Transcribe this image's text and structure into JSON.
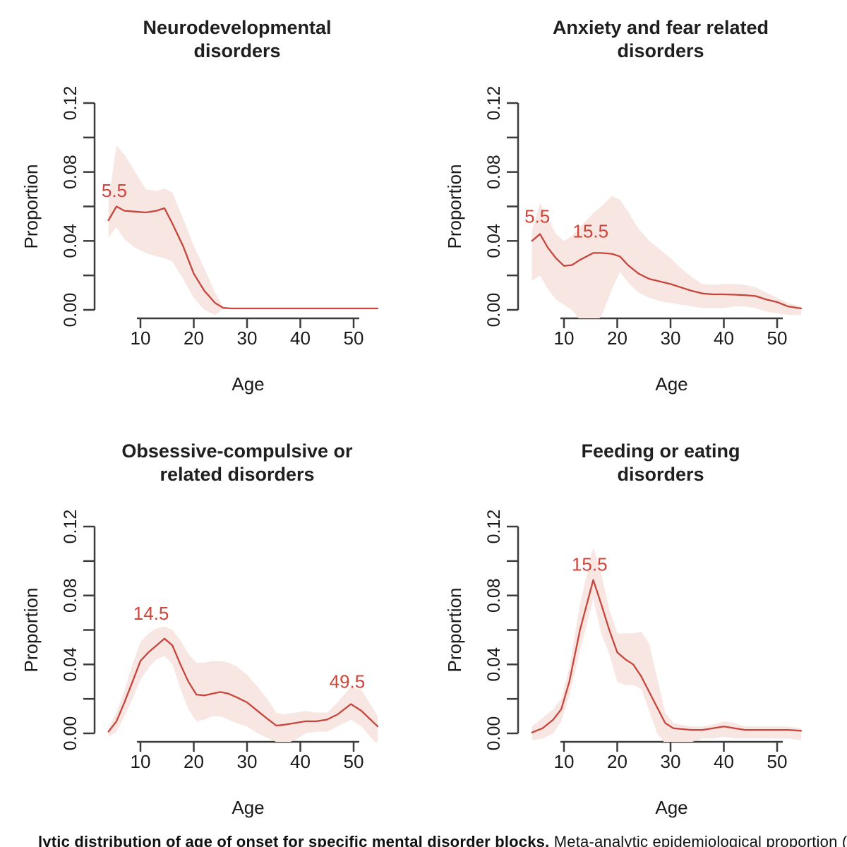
{
  "page": {
    "background": "#ffffff"
  },
  "colors": {
    "line": "#c6463d",
    "band": "#f7e6e2",
    "annotation": "#d0453a",
    "axis": "#3c3c3c",
    "tick_text": "#1a1a1a",
    "title_text": "#1f1f1f"
  },
  "caption": {
    "bold": "lytic distribution of age of onset for specific mental disorder blocks.",
    "regular": " Meta-analytic epidemiological proportion ("
  },
  "chart_data": [
    {
      "type": "line",
      "title": "Neurodevelopmental disorders",
      "title_lines": [
        "Neurodevelopmental",
        "disorders"
      ],
      "xlabel": "Age",
      "ylabel": "Proportion",
      "xlim": [
        3,
        55.5
      ],
      "ylim": [
        0,
        0.12
      ],
      "xticks": [
        10,
        20,
        30,
        40,
        50
      ],
      "yticks": [
        0,
        0.02,
        0.04,
        0.06,
        0.08,
        0.1,
        0.12
      ],
      "ytick_labeled": [
        0,
        0.04,
        0.08,
        0.12
      ],
      "ytick_labels": [
        "0.00",
        "0.04",
        "0.08",
        "0.12"
      ],
      "x": [
        4,
        5.5,
        7,
        9,
        11,
        13,
        14.5,
        16,
        18,
        20,
        22,
        24,
        25.5,
        27,
        30,
        35,
        40,
        45,
        50,
        54.5
      ],
      "series": [
        {
          "name": "mean",
          "values": [
            0.052,
            0.06,
            0.0575,
            0.057,
            0.0565,
            0.0575,
            0.059,
            0.05,
            0.037,
            0.021,
            0.011,
            0.004,
            0.0012,
            0.0008,
            0.0008,
            0.0008,
            0.0008,
            0.0008,
            0.0008,
            0.0008
          ]
        },
        {
          "name": "upper",
          "values": [
            0.063,
            0.0955,
            0.09,
            0.08,
            0.07,
            0.069,
            0.0705,
            0.068,
            0.053,
            0.037,
            0.024,
            0.01,
            0.002,
            0.0012,
            0.0012,
            0.0012,
            0.0012,
            0.0012,
            0.0012,
            0.0012
          ]
        },
        {
          "name": "lower",
          "values": [
            0.042,
            0.048,
            0.041,
            0.036,
            0.033,
            0.031,
            0.03,
            0.028,
            0.018,
            0.007,
            0.0,
            -0.003,
            0.0004,
            0.0004,
            0.0004,
            0.0004,
            0.0004,
            0.0004,
            0.0004,
            0.0004
          ]
        }
      ],
      "annotations": [
        {
          "text": "5.5",
          "age": 2.7,
          "value": 0.0655,
          "anchor": "start"
        }
      ]
    },
    {
      "type": "line",
      "title": "Anxiety and fear related disorders",
      "title_lines": [
        "Anxiety and fear related",
        "disorders"
      ],
      "xlabel": "Age",
      "ylabel": "Proportion",
      "xlim": [
        3,
        55.5
      ],
      "ylim": [
        0,
        0.12
      ],
      "xticks": [
        10,
        20,
        30,
        40,
        50
      ],
      "yticks": [
        0,
        0.02,
        0.04,
        0.06,
        0.08,
        0.1,
        0.12
      ],
      "ytick_labeled": [
        0,
        0.04,
        0.08,
        0.12
      ],
      "ytick_labels": [
        "0.00",
        "0.04",
        "0.08",
        "0.12"
      ],
      "x": [
        4,
        5.5,
        7,
        8.5,
        10,
        11.5,
        13,
        15.5,
        17,
        19,
        20.5,
        22,
        24,
        26,
        28,
        30,
        32,
        34,
        36,
        38,
        40,
        42,
        44,
        46,
        48,
        50,
        52,
        54.5
      ],
      "series": [
        {
          "name": "mean",
          "values": [
            0.04,
            0.044,
            0.036,
            0.03,
            0.0255,
            0.026,
            0.029,
            0.033,
            0.033,
            0.0325,
            0.031,
            0.026,
            0.021,
            0.018,
            0.0165,
            0.015,
            0.013,
            0.011,
            0.0095,
            0.009,
            0.009,
            0.0088,
            0.0085,
            0.008,
            0.006,
            0.0045,
            0.002,
            0.0008
          ]
        },
        {
          "name": "upper",
          "values": [
            0.046,
            0.062,
            0.053,
            0.044,
            0.04,
            0.043,
            0.048,
            0.056,
            0.06,
            0.066,
            0.064,
            0.057,
            0.047,
            0.04,
            0.035,
            0.03,
            0.024,
            0.019,
            0.015,
            0.0145,
            0.015,
            0.015,
            0.0145,
            0.013,
            0.01,
            0.007,
            0.004,
            0.002
          ]
        },
        {
          "name": "lower",
          "values": [
            0.017,
            0.02,
            0.012,
            0.006,
            0.003,
            0.0,
            -0.006,
            -0.008,
            -0.004,
            0.012,
            0.022,
            0.016,
            0.01,
            0.007,
            0.005,
            0.004,
            0.003,
            0.002,
            0.001,
            0.001,
            0.001,
            0.002,
            0.002,
            0.001,
            -0.001,
            -0.002,
            -0.003,
            -0.003
          ]
        }
      ],
      "annotations": [
        {
          "text": "5.5",
          "age": 2.6,
          "value": 0.0505,
          "anchor": "start"
        },
        {
          "text": "15.5",
          "age": 15.0,
          "value": 0.042,
          "anchor": "middle"
        }
      ]
    },
    {
      "type": "line",
      "title": "Obsessive-compulsive or related disorders",
      "title_lines": [
        "Obsessive-compulsive or",
        "related disorders"
      ],
      "xlabel": "Age",
      "ylabel": "Proportion",
      "xlim": [
        3,
        55.5
      ],
      "ylim": [
        0,
        0.12
      ],
      "xticks": [
        10,
        20,
        30,
        40,
        50
      ],
      "yticks": [
        0,
        0.02,
        0.04,
        0.06,
        0.08,
        0.1,
        0.12
      ],
      "ytick_labeled": [
        0,
        0.04,
        0.08,
        0.12
      ],
      "ytick_labels": [
        "0.00",
        "0.04",
        "0.08",
        "0.12"
      ],
      "x": [
        4,
        5.5,
        7,
        8.5,
        10,
        11.5,
        13,
        14.5,
        16,
        17.5,
        19,
        20.5,
        22,
        23.5,
        25,
        26.5,
        28,
        30,
        32,
        34,
        35.5,
        37,
        39,
        41,
        43,
        45,
        47,
        49.5,
        51.5,
        54.5
      ],
      "series": [
        {
          "name": "mean",
          "values": [
            0.001,
            0.007,
            0.018,
            0.03,
            0.042,
            0.047,
            0.051,
            0.055,
            0.051,
            0.04,
            0.03,
            0.0225,
            0.022,
            0.023,
            0.024,
            0.023,
            0.021,
            0.018,
            0.013,
            0.008,
            0.0045,
            0.005,
            0.006,
            0.007,
            0.007,
            0.008,
            0.011,
            0.017,
            0.013,
            0.004
          ]
        },
        {
          "name": "upper",
          "values": [
            0.003,
            0.012,
            0.025,
            0.04,
            0.053,
            0.058,
            0.061,
            0.062,
            0.06,
            0.054,
            0.046,
            0.041,
            0.041,
            0.042,
            0.042,
            0.041,
            0.039,
            0.034,
            0.027,
            0.019,
            0.012,
            0.011,
            0.012,
            0.013,
            0.012,
            0.012,
            0.018,
            0.027,
            0.025,
            0.01
          ]
        },
        {
          "name": "lower",
          "values": [
            -0.002,
            0.001,
            0.01,
            0.02,
            0.031,
            0.038,
            0.043,
            0.045,
            0.04,
            0.026,
            0.014,
            0.007,
            0.008,
            0.01,
            0.01,
            0.008,
            0.006,
            0.004,
            0.0,
            -0.003,
            -0.005,
            -0.006,
            -0.004,
            0.0,
            0.001,
            0.001,
            0.004,
            0.008,
            0.004,
            -0.007
          ]
        }
      ],
      "annotations": [
        {
          "text": "14.5",
          "age": 12.0,
          "value": 0.066,
          "anchor": "middle"
        },
        {
          "text": "49.5",
          "age": 48.8,
          "value": 0.0265,
          "anchor": "middle"
        }
      ]
    },
    {
      "type": "line",
      "title": "Feeding or eating disorders",
      "title_lines": [
        "Feeding or eating",
        "disorders"
      ],
      "xlabel": "Age",
      "ylabel": "Proportion",
      "xlim": [
        3,
        55.5
      ],
      "ylim": [
        0,
        0.12
      ],
      "xticks": [
        10,
        20,
        30,
        40,
        50
      ],
      "yticks": [
        0,
        0.02,
        0.04,
        0.06,
        0.08,
        0.1,
        0.12
      ],
      "ytick_labeled": [
        0,
        0.04,
        0.08,
        0.12
      ],
      "ytick_labels": [
        "0.00",
        "0.04",
        "0.08",
        "0.12"
      ],
      "x": [
        4,
        6,
        8,
        9.5,
        11,
        13,
        15.5,
        17,
        18.5,
        20,
        21.5,
        23,
        24.5,
        26,
        27.5,
        29,
        30.5,
        32,
        34,
        36,
        38,
        40,
        42,
        44,
        46,
        48,
        50,
        52,
        54.5
      ],
      "series": [
        {
          "name": "mean",
          "values": [
            0.0005,
            0.003,
            0.008,
            0.014,
            0.03,
            0.06,
            0.089,
            0.075,
            0.06,
            0.047,
            0.043,
            0.04,
            0.033,
            0.024,
            0.015,
            0.006,
            0.003,
            0.0025,
            0.002,
            0.002,
            0.003,
            0.004,
            0.003,
            0.002,
            0.002,
            0.002,
            0.002,
            0.002,
            0.0015
          ]
        },
        {
          "name": "upper",
          "values": [
            0.004,
            0.009,
            0.014,
            0.02,
            0.038,
            0.075,
            0.108,
            0.093,
            0.072,
            0.058,
            0.058,
            0.058,
            0.059,
            0.052,
            0.032,
            0.012,
            0.006,
            0.005,
            0.004,
            0.004,
            0.005,
            0.007,
            0.006,
            0.004,
            0.004,
            0.004,
            0.004,
            0.004,
            0.003
          ]
        },
        {
          "name": "lower",
          "values": [
            -0.004,
            -0.003,
            0.0,
            0.007,
            0.022,
            0.048,
            0.078,
            0.058,
            0.046,
            0.03,
            0.028,
            0.028,
            0.026,
            0.013,
            0.0,
            -0.006,
            -0.007,
            -0.006,
            -0.005,
            -0.003,
            -0.003,
            -0.002,
            -0.003,
            -0.003,
            -0.003,
            -0.003,
            -0.003,
            -0.003,
            -0.004
          ]
        }
      ],
      "annotations": [
        {
          "text": "15.5",
          "age": 14.8,
          "value": 0.0945,
          "anchor": "middle"
        }
      ]
    }
  ]
}
